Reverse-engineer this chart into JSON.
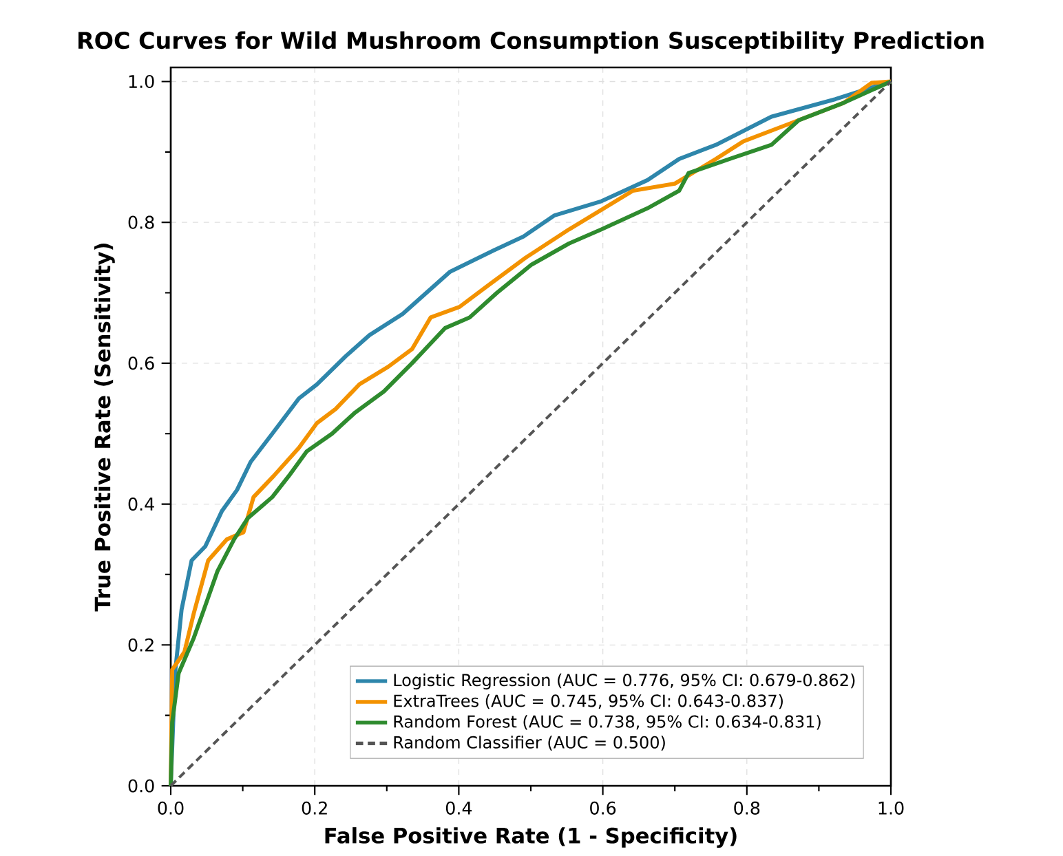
{
  "chart_data": {
    "type": "line",
    "title": "ROC Curves for Wild Mushroom Consumption Susceptibility Prediction",
    "xlabel": "False Positive Rate (1 - Specificity)",
    "ylabel": "True Positive Rate (Sensitivity)",
    "xlim": [
      0,
      1
    ],
    "ylim": [
      0,
      1.02
    ],
    "xticks": [
      {
        "value": 0,
        "label": "0.0"
      },
      {
        "value": 0.1,
        "label": null
      },
      {
        "value": 0.2,
        "label": "0.2"
      },
      {
        "value": 0.3,
        "label": null
      },
      {
        "value": 0.4,
        "label": "0.4"
      },
      {
        "value": 0.5,
        "label": null
      },
      {
        "value": 0.6,
        "label": "0.6"
      },
      {
        "value": 0.7,
        "label": null
      },
      {
        "value": 0.8,
        "label": "0.8"
      },
      {
        "value": 0.9,
        "label": null
      },
      {
        "value": 1,
        "label": "1.0"
      }
    ],
    "yticks": [
      {
        "value": 0,
        "label": "0.0"
      },
      {
        "value": 0.1,
        "label": null
      },
      {
        "value": 0.2,
        "label": "0.2"
      },
      {
        "value": 0.3,
        "label": null
      },
      {
        "value": 0.4,
        "label": "0.4"
      },
      {
        "value": 0.5,
        "label": null
      },
      {
        "value": 0.6,
        "label": "0.6"
      },
      {
        "value": 0.7,
        "label": null
      },
      {
        "value": 0.8,
        "label": "0.8"
      },
      {
        "value": 0.9,
        "label": null
      },
      {
        "value": 1,
        "label": "1.0"
      }
    ],
    "grid": true,
    "legend": "bottom right",
    "series": [
      {
        "name": "Logistic Regression (AUC = 0.776, 95% CI: 0.679-0.862)",
        "color": "#2e86ab",
        "x": [
          0,
          0.006,
          0.015,
          0.029,
          0.048,
          0.071,
          0.092,
          0.111,
          0.141,
          0.178,
          0.203,
          0.243,
          0.276,
          0.322,
          0.355,
          0.388,
          0.448,
          0.49,
          0.533,
          0.598,
          0.662,
          0.706,
          0.757,
          0.834,
          0.923,
          1
        ],
        "values": [
          0,
          0.16,
          0.25,
          0.32,
          0.34,
          0.39,
          0.42,
          0.46,
          0.5,
          0.55,
          0.57,
          0.61,
          0.64,
          0.67,
          0.7,
          0.73,
          0.76,
          0.78,
          0.81,
          0.83,
          0.86,
          0.89,
          0.91,
          0.95,
          0.975,
          1
        ]
      },
      {
        "name": "ExtraTrees (AUC = 0.745, 95% CI: 0.643-0.837)",
        "color": "#f39200",
        "x": [
          0,
          0.002,
          0.019,
          0.032,
          0.052,
          0.078,
          0.101,
          0.115,
          0.143,
          0.178,
          0.203,
          0.229,
          0.262,
          0.302,
          0.335,
          0.361,
          0.401,
          0.44,
          0.493,
          0.553,
          0.642,
          0.7,
          0.757,
          0.795,
          0.859,
          0.935,
          0.973,
          1
        ],
        "values": [
          0,
          0.165,
          0.19,
          0.245,
          0.32,
          0.35,
          0.36,
          0.41,
          0.44,
          0.48,
          0.515,
          0.535,
          0.57,
          0.595,
          0.62,
          0.665,
          0.68,
          0.71,
          0.75,
          0.79,
          0.845,
          0.855,
          0.89,
          0.915,
          0.94,
          0.97,
          0.998,
          1
        ]
      },
      {
        "name": "Random Forest (AUC = 0.738, 95% CI: 0.634-0.831)",
        "color": "#2e8b2e",
        "x": [
          0,
          0.002,
          0.011,
          0.032,
          0.046,
          0.065,
          0.088,
          0.107,
          0.124,
          0.141,
          0.164,
          0.189,
          0.224,
          0.256,
          0.296,
          0.335,
          0.381,
          0.415,
          0.453,
          0.501,
          0.553,
          0.598,
          0.662,
          0.706,
          0.719,
          0.776,
          0.834,
          0.872,
          0.935,
          1
        ],
        "values": [
          0,
          0.09,
          0.16,
          0.21,
          0.25,
          0.305,
          0.35,
          0.38,
          0.395,
          0.41,
          0.44,
          0.475,
          0.5,
          0.53,
          0.56,
          0.6,
          0.65,
          0.665,
          0.7,
          0.74,
          0.77,
          0.79,
          0.82,
          0.845,
          0.87,
          0.89,
          0.91,
          0.945,
          0.97,
          1
        ]
      },
      {
        "name": "Random Classifier (AUC = 0.500)",
        "color": "#555555",
        "line_style": "dashed",
        "x": [
          0,
          1
        ],
        "values": [
          0,
          1
        ]
      }
    ]
  }
}
